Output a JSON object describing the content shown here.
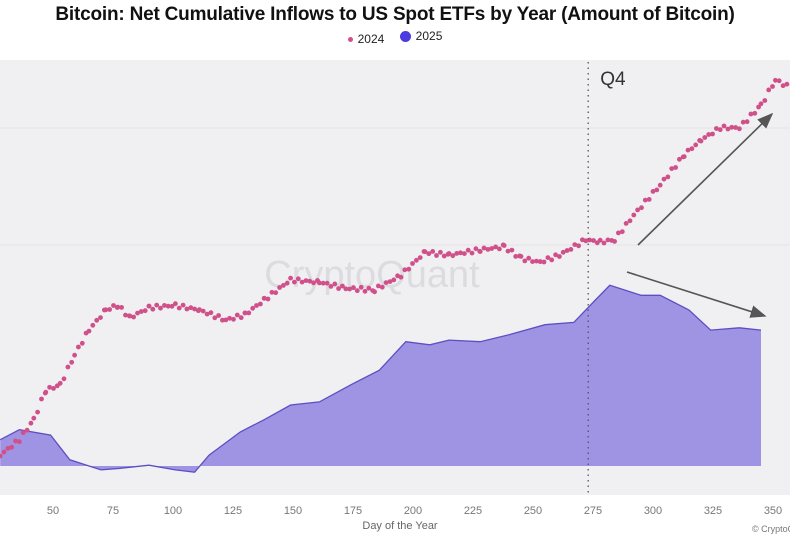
{
  "chart_data": {
    "type": "scatter+area",
    "title": "Bitcoin: Net Cumulative Inflows to US Spot ETFs by Year (Amount of Bitcoin)",
    "xlabel": "Day of the Year",
    "ylabel": "",
    "xlim": [
      28,
      357
    ],
    "ylim": [
      -37,
      500
    ],
    "xticks": [
      "50",
      "75",
      "100",
      "125",
      "150",
      "175",
      "200",
      "225",
      "250",
      "275",
      "300",
      "325",
      "350"
    ],
    "annotation": "Q4",
    "q4_day": 273,
    "watermark": "CryptoQuant",
    "credit": "© CryptoQuant",
    "colors": {
      "2024": "#d0508a",
      "2025_fill": "#9f94e3",
      "2025_line": "#5b4fc4",
      "legend_2025": "#4b3be0",
      "background": "#f0eff2"
    },
    "series": [
      {
        "name": "2024",
        "style": "dots",
        "x": [
          28,
          36,
          42,
          47,
          53,
          59,
          65,
          72,
          77,
          82,
          90,
          101,
          111,
          122,
          130,
          138,
          149,
          161,
          172,
          184,
          195,
          205,
          215,
          228,
          238,
          245,
          253,
          261,
          272,
          278,
          284,
          292,
          303,
          313,
          320,
          328,
          336,
          345,
          351,
          357
        ],
        "y": [
          14,
          34,
          60,
          98,
          105,
          144,
          176,
          202,
          208,
          192,
          205,
          208,
          202,
          189,
          196,
          215,
          241,
          238,
          230,
          228,
          247,
          277,
          273,
          280,
          284,
          269,
          264,
          273,
          293,
          290,
          293,
          325,
          364,
          403,
          422,
          438,
          438,
          467,
          500,
          490
        ]
      },
      {
        "name": "2025",
        "style": "area",
        "x": [
          28,
          36,
          49,
          57,
          70,
          78,
          90,
          101,
          109,
          115,
          128,
          138,
          149,
          161,
          174,
          186,
          197,
          207,
          215,
          228,
          240,
          255,
          267,
          276,
          282,
          295,
          303,
          315,
          324,
          336,
          345
        ],
        "y": [
          34,
          47,
          40,
          8,
          -5,
          -3,
          1,
          -5,
          -8,
          14,
          44,
          60,
          79,
          83,
          105,
          124,
          161,
          157,
          163,
          161,
          170,
          183,
          186,
          215,
          234,
          221,
          221,
          202,
          176,
          179,
          176
        ]
      }
    ]
  }
}
